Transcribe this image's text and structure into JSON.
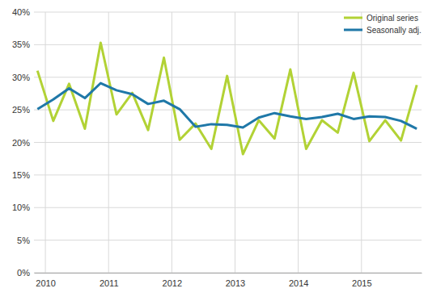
{
  "chart_data": {
    "type": "line",
    "x": [
      2009.875,
      2010.125,
      2010.375,
      2010.625,
      2010.875,
      2011.125,
      2011.375,
      2011.625,
      2011.875,
      2012.125,
      2012.375,
      2012.625,
      2012.875,
      2013.125,
      2013.375,
      2013.625,
      2013.875,
      2014.125,
      2014.375,
      2014.625,
      2014.875,
      2015.125,
      2015.375,
      2015.625,
      2015.875
    ],
    "series": [
      {
        "name": "Original series",
        "color": "#b2d235",
        "values": [
          31.0,
          23.3,
          29.0,
          22.1,
          35.3,
          24.3,
          27.6,
          21.9,
          33.0,
          20.4,
          22.9,
          19.0,
          30.2,
          18.2,
          23.4,
          20.6,
          31.2,
          19.0,
          23.4,
          21.5,
          30.7,
          20.2,
          23.4,
          20.3,
          28.8
        ]
      },
      {
        "name": "Seasonally adj.",
        "color": "#1f78a8",
        "values": [
          25.1,
          26.6,
          28.3,
          26.8,
          29.1,
          28.0,
          27.4,
          25.9,
          26.4,
          25.1,
          22.4,
          22.8,
          22.7,
          22.3,
          23.8,
          24.5,
          24.0,
          23.6,
          23.9,
          24.4,
          23.6,
          24.0,
          23.9,
          23.3,
          22.1
        ]
      }
    ],
    "xlim": [
      2009.82,
      2015.95
    ],
    "xticks": [
      2010,
      2011,
      2012,
      2013,
      2014,
      2015
    ],
    "ylim": [
      0,
      40
    ],
    "yticks": [
      {
        "value": 0,
        "label": "0%"
      },
      {
        "value": 5,
        "label": "5%"
      },
      {
        "value": 10,
        "label": "10%"
      },
      {
        "value": 15,
        "label": "15%"
      },
      {
        "value": 20,
        "label": "20%"
      },
      {
        "value": 25,
        "label": "25%"
      },
      {
        "value": 30,
        "label": "30%"
      },
      {
        "value": 35,
        "label": "35%"
      },
      {
        "value": 40,
        "label": "40%"
      }
    ],
    "grid": true,
    "legend": "upper right"
  }
}
